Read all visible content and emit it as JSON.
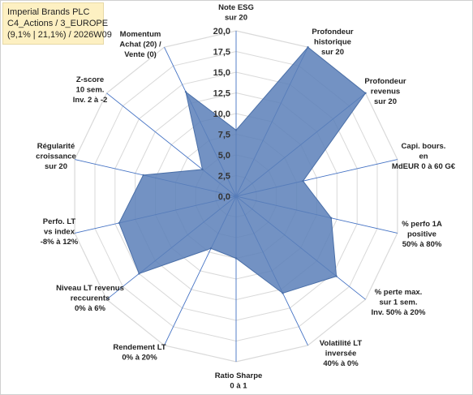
{
  "header": {
    "line1": "Imperial Brands PLC",
    "line2": "C4_Actions / 3_EUROPE",
    "line3": "(9,1% | 21,1%) / 2026W09"
  },
  "chart_data": {
    "type": "radar",
    "rmin": 0,
    "rmax": 20,
    "ticks": [
      "0,0",
      "2,5",
      "5,0",
      "7,5",
      "10,0",
      "12,5",
      "15,0",
      "17,5",
      "20,0"
    ],
    "categories": [
      "Note ESG sur 20",
      "Profondeur historique sur 20",
      "Profondeur revenus sur 20",
      "Capi. bours. en MdEUR 0 à 60 G€",
      "% perfo 1A positive 50% à 80%",
      "% perte max. sur 1 sem. Inv. 50% à 20%",
      "Volatilité LT inversée 40% à 0%",
      "Ratio Sharpe 0 à 1",
      "Rendement LT 0% à 20%",
      "Niveau LT revenus reccurents 0% à 6%",
      "Perfo. LT vs index -8% à 12%",
      "Régularité croissance sur 20",
      "Z-score 10 sem. Inv. 2 à -2",
      "Momentum Achat (20) / Vente (0)"
    ],
    "values": [
      8.0,
      20.0,
      20.0,
      8.3,
      11.8,
      15.5,
      13.0,
      7.5,
      7.0,
      15.0,
      14.5,
      11.5,
      5.2,
      14.0
    ],
    "fill_color": "#5b7fb9",
    "fill_opacity": 0.85,
    "line_color": "#4a6fa8",
    "grid_color": "#d9d9d9",
    "spoke_color": "#4472c4",
    "grid": true,
    "legend": "none"
  }
}
